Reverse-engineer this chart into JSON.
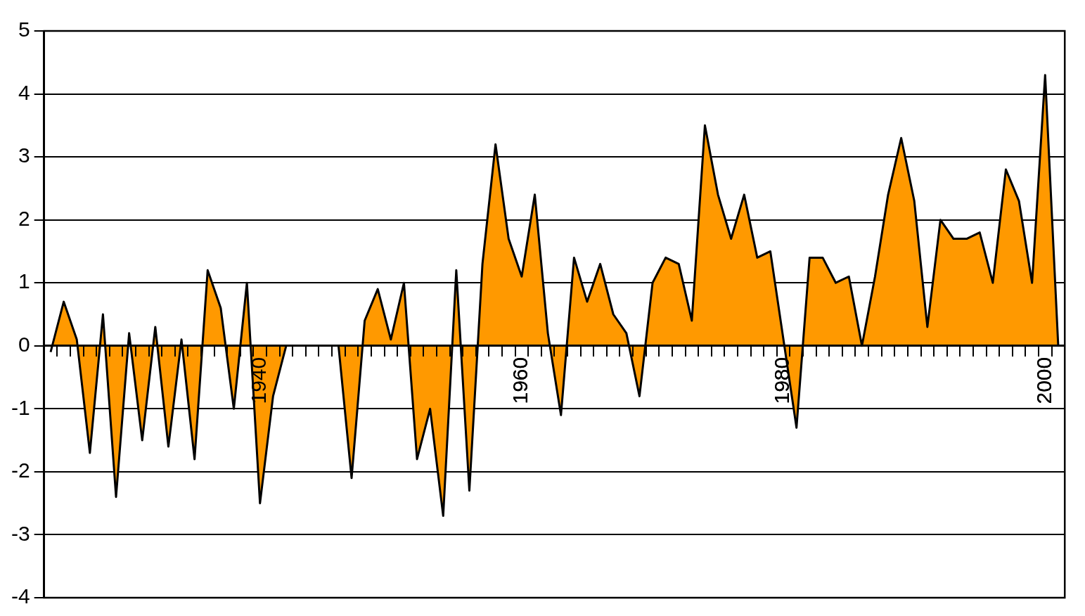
{
  "chart_data": {
    "type": "area",
    "categories": [
      null,
      null,
      null,
      null,
      null,
      null,
      null,
      null,
      null,
      null,
      null,
      null,
      null,
      null,
      null,
      null,
      "1940",
      null,
      null,
      null,
      null,
      null,
      null,
      null,
      null,
      null,
      null,
      null,
      null,
      null,
      null,
      null,
      null,
      null,
      null,
      null,
      "1960",
      null,
      null,
      null,
      null,
      null,
      null,
      null,
      null,
      null,
      null,
      null,
      null,
      null,
      null,
      null,
      null,
      null,
      null,
      null,
      "1980",
      null,
      null,
      null,
      null,
      null,
      null,
      null,
      null,
      null,
      null,
      null,
      null,
      null,
      null,
      null,
      null,
      null,
      null,
      null,
      "2000",
      null
    ],
    "series": [
      {
        "color": "#ff9900",
        "values": [
          -0.1,
          0.7,
          0.1,
          -1.7,
          0.5,
          -2.4,
          0.2,
          -1.5,
          0.3,
          -1.6,
          0.1,
          -1.8,
          1.2,
          0.6,
          -1.0,
          1.0,
          -2.5,
          -0.8,
          0,
          null,
          null,
          null,
          0,
          -2.1,
          0.4,
          0.9,
          0.1,
          1.0,
          -1.8,
          -1.0,
          -2.7,
          1.2,
          -2.3,
          1.3,
          3.2,
          1.7,
          1.1,
          2.4,
          0.2,
          -1.1,
          1.4,
          0.7,
          1.3,
          0.5,
          0.2,
          -0.8,
          1.0,
          1.4,
          1.3,
          0.4,
          3.5,
          2.4,
          1.7,
          2.4,
          1.4,
          1.5,
          0.1,
          -1.3,
          1.4,
          1.4,
          1.0,
          1.1,
          0,
          1.1,
          2.4,
          3.3,
          2.3,
          0.3,
          2.0,
          1.7,
          1.7,
          1.8,
          1.0,
          2.8,
          2.3,
          1.0,
          4.3,
          0
        ]
      }
    ],
    "ylim": [
      -4,
      5
    ],
    "yticks": [
      -4,
      -3,
      -2,
      -1,
      0,
      1,
      2,
      3,
      4,
      5
    ],
    "grid": "y",
    "legend": false
  }
}
